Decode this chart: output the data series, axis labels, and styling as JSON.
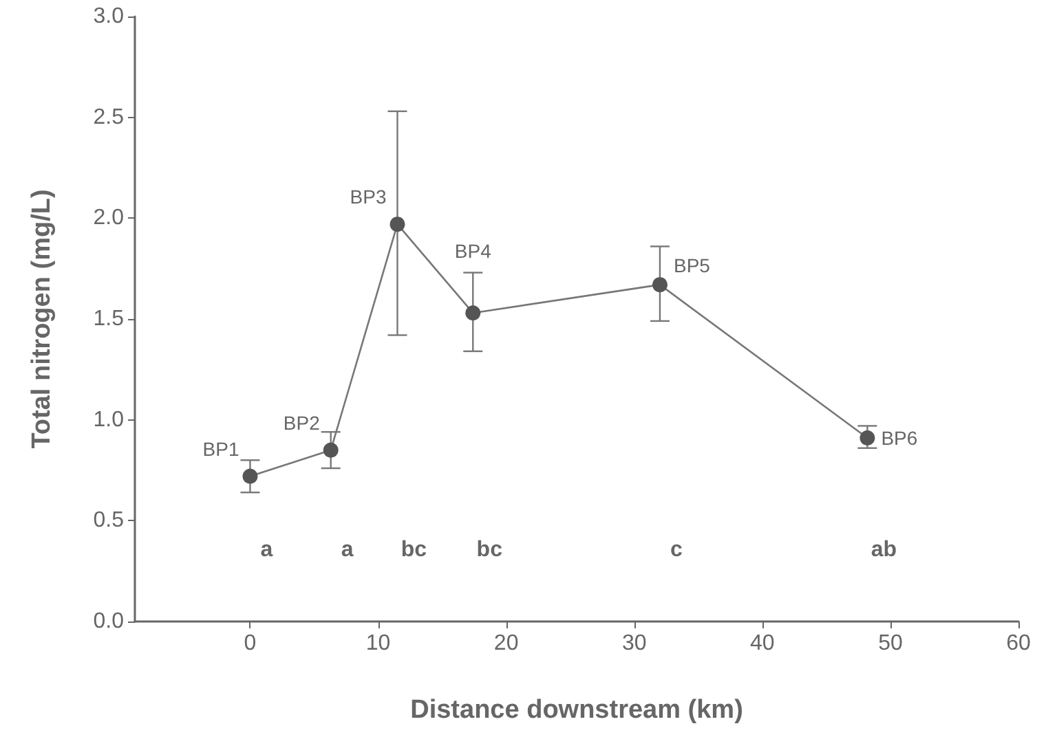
{
  "chart_data": {
    "type": "line",
    "xlabel": "Distance downstream (km)",
    "ylabel": "Total nitrogen (mg/L)",
    "x": [
      0,
      6.3,
      11.5,
      17.4,
      32.0,
      48.2
    ],
    "series": [
      {
        "color": "#555555",
        "values": [
          0.72,
          0.85,
          1.97,
          1.53,
          1.67,
          0.91
        ],
        "errors": [
          [
            0.64,
            0.8
          ],
          [
            0.76,
            0.94
          ],
          [
            1.42,
            2.53
          ],
          [
            1.34,
            1.73
          ],
          [
            1.49,
            1.86
          ],
          [
            0.86,
            0.97
          ]
        ]
      }
    ],
    "xlim": [
      -9,
      60
    ],
    "xticks": [
      0,
      10,
      20,
      30,
      40,
      50,
      60
    ],
    "ylim": [
      0,
      3
    ],
    "yticks": [
      {
        "value": 0,
        "label": "0.0"
      },
      {
        "value": 0.5,
        "label": "0.5"
      },
      {
        "value": 1,
        "label": "1.0"
      },
      {
        "value": 1.5,
        "label": "1.5"
      },
      {
        "value": 2,
        "label": "2.0"
      },
      {
        "value": 2.5,
        "label": "2.5"
      },
      {
        "value": 3,
        "label": "3.0"
      }
    ],
    "annotations": [
      {
        "text": "BP1",
        "x": 0,
        "y": 0.72
      },
      {
        "text": "BP2",
        "x": 6.3,
        "y": 0.85
      },
      {
        "text": "BP3",
        "x": 11.5,
        "y": 1.97
      },
      {
        "text": "BP4",
        "x": 17.4,
        "y": 1.53
      },
      {
        "text": "BP5",
        "x": 32.0,
        "y": 1.67
      },
      {
        "text": "BP6",
        "x": 48.2,
        "y": 0.91
      },
      "a",
      "a",
      "bc",
      "bc",
      "c",
      "ab"
    ],
    "grid": false,
    "marker": "circle",
    "line_style": "solid"
  }
}
